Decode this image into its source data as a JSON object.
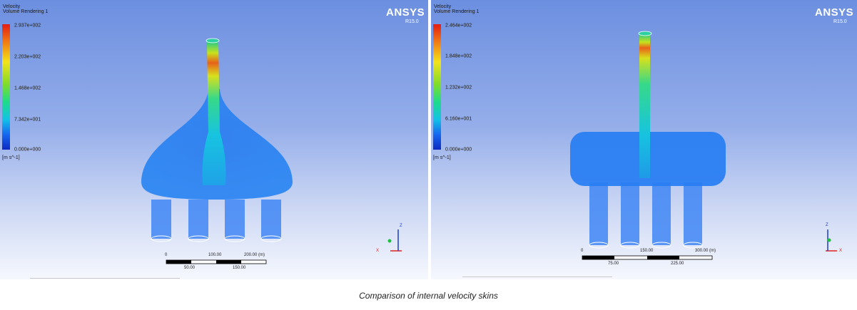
{
  "left": {
    "legend_title": "Velocity",
    "legend_subtitle": "Volume Rendering 1",
    "ticks": [
      "2.937e+002",
      "2.203e+002",
      "1.468e+002",
      "7.342e+001",
      "0.000e+000"
    ],
    "units": "[m s^-1]",
    "brand": "ANSYS",
    "version": "R15.0",
    "scale_top": [
      "0",
      "100.00",
      "200.00 (m)"
    ],
    "scale_bottom": [
      "50.00",
      "150.00"
    ]
  },
  "right": {
    "legend_title": "Velocity",
    "legend_subtitle": "Volume Rendering 1",
    "ticks": [
      "2.464e+002",
      "1.848e+002",
      "1.232e+002",
      "6.160e+001",
      "0.000e+000"
    ],
    "units": "[m s^-1]",
    "brand": "ANSYS",
    "version": "R15.0",
    "scale_top": [
      "0",
      "150.00",
      "300.00 (m)"
    ],
    "scale_bottom": [
      "75.00",
      "225.00"
    ]
  },
  "caption": "Comparison of internal velocity skins"
}
